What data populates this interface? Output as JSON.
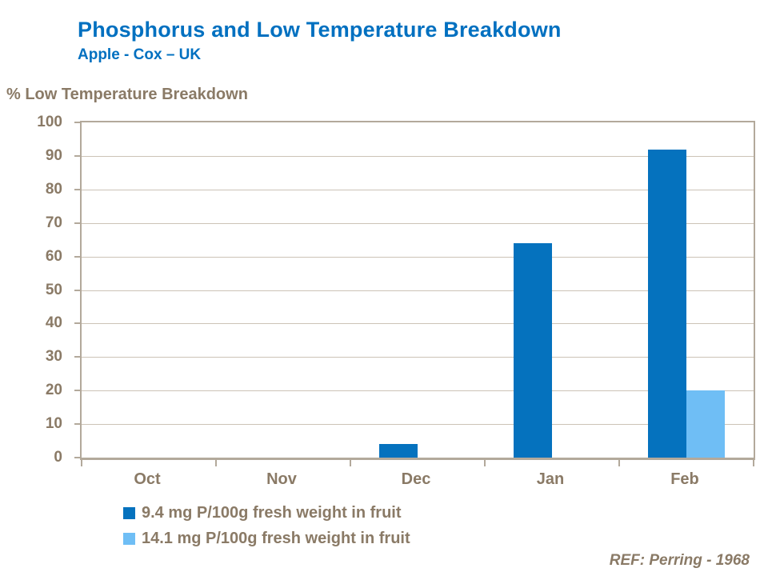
{
  "title": "Phosphorus and Low Temperature Breakdown",
  "subtitle": "Apple - Cox – UK",
  "axis_title": "% Low Temperature Breakdown",
  "reference": "REF: Perring - 1968",
  "colors": {
    "title_blue": "#0070C0",
    "text_brown": "#8A7A66",
    "axis_line": "#B3A99B",
    "gridline": "#CCC3B7",
    "series1": "#0572BE",
    "series2": "#6FBEF5"
  },
  "chart_data": {
    "type": "bar",
    "categories": [
      "Oct",
      "Nov",
      "Dec",
      "Jan",
      "Feb"
    ],
    "series": [
      {
        "name": "9.4 mg P/100g fresh weight in fruit",
        "color": "#0572BE",
        "values": [
          0,
          0,
          4,
          64,
          92
        ]
      },
      {
        "name": "14.1 mg P/100g fresh weight in fruit",
        "color": "#6FBEF5",
        "values": [
          0,
          0,
          0,
          0,
          20
        ]
      }
    ],
    "title": "Phosphorus and Low Temperature Breakdown",
    "subtitle": "Apple - Cox – UK",
    "xlabel": "",
    "ylabel": "% Low Temperature Breakdown",
    "ylim": [
      0,
      100
    ],
    "ytick_step": 10,
    "grid": true,
    "legend_position": "bottom-left",
    "annotation": "REF: Perring - 1968"
  }
}
